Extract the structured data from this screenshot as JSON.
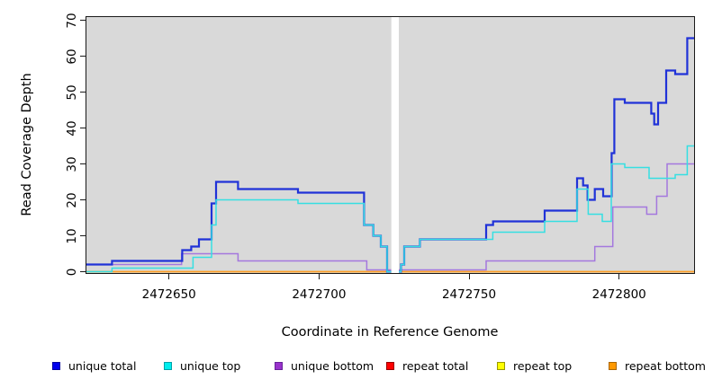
{
  "chart_data": {
    "type": "line",
    "step": true,
    "title": "",
    "xlabel": "Coordinate in Reference Genome",
    "ylabel": "Read Coverage Depth",
    "x_ticks": [
      2472650,
      2472700,
      2472750,
      2472800
    ],
    "y_ticks": [
      0,
      10,
      20,
      30,
      40,
      50,
      60,
      70
    ],
    "xlim": [
      2472622.3,
      2472825.2
    ],
    "ylim": [
      0,
      70
    ],
    "grid": false,
    "panel_bg": "#d9d9d9",
    "gap_x": [
      2472724.1,
      2472726.6
    ],
    "legend_position": "bottom",
    "legend": [
      {
        "label": "unique total",
        "fill": "#0000EE",
        "border": "#0000A0"
      },
      {
        "label": "unique top",
        "fill": "#00EEEE",
        "border": "#00A0A8"
      },
      {
        "label": "unique bottom",
        "fill": "#9932CC",
        "border": "#662299"
      },
      {
        "label": "repeat total",
        "fill": "#FF0000",
        "border": "#990000"
      },
      {
        "label": "repeat top",
        "fill": "#FFFF00",
        "border": "#999900"
      },
      {
        "label": "repeat bottom",
        "fill": "#FF9900",
        "border": "#AA6600"
      }
    ],
    "series": [
      {
        "name": "repeat total",
        "color": "#cc3355",
        "width": 1.4,
        "points_left": [
          [
            2472622.3,
            0
          ]
        ],
        "points_right": [
          [
            2472726.6,
            0
          ]
        ]
      },
      {
        "name": "repeat top",
        "color": "#ffff33",
        "width": 1.4,
        "points_left": [
          [
            2472622.3,
            0
          ]
        ],
        "points_right": [
          [
            2472726.6,
            0
          ]
        ]
      },
      {
        "name": "repeat bottom",
        "color": "#ff9d28",
        "width": 1.6,
        "points_left": [
          [
            2472622.3,
            0
          ]
        ],
        "points_right": [
          [
            2472726.6,
            0
          ]
        ]
      },
      {
        "name": "unique bottom",
        "color": "#a478de",
        "width": 1.5,
        "points_left": [
          [
            2472622.3,
            2
          ],
          [
            2472654.2,
            5
          ],
          [
            2472673,
            3
          ],
          [
            2472715.9,
            0.5
          ]
        ],
        "points_right": [
          [
            2472726.6,
            0.5
          ],
          [
            2472755.7,
            3
          ],
          [
            2472791.9,
            7
          ],
          [
            2472797.9,
            18
          ],
          [
            2472809.2,
            16
          ],
          [
            2472812.5,
            21
          ],
          [
            2472816,
            30
          ]
        ]
      },
      {
        "name": "unique total",
        "color": "#2032d8",
        "width": 2.2,
        "points_left": [
          [
            2472622.3,
            2
          ],
          [
            2472631,
            3
          ],
          [
            2472654.4,
            6
          ],
          [
            2472657.4,
            7
          ],
          [
            2472660,
            9
          ],
          [
            2472664.2,
            19
          ],
          [
            2472665.7,
            25
          ],
          [
            2472673,
            23
          ],
          [
            2472693,
            22
          ],
          [
            2472715,
            13
          ],
          [
            2472718.1,
            10
          ],
          [
            2472720.6,
            7
          ],
          [
            2472722.7,
            0
          ]
        ],
        "points_right": [
          [
            2472726.6,
            0
          ],
          [
            2472727.3,
            2
          ],
          [
            2472728.4,
            7
          ],
          [
            2472733.6,
            9
          ],
          [
            2472755.7,
            13
          ],
          [
            2472758,
            14
          ],
          [
            2472775.2,
            17
          ],
          [
            2472786,
            26
          ],
          [
            2472788,
            24
          ],
          [
            2472789.5,
            20
          ],
          [
            2472791.9,
            23
          ],
          [
            2472794.7,
            21
          ],
          [
            2472797.5,
            33
          ],
          [
            2472798.4,
            48
          ],
          [
            2472801.9,
            47
          ],
          [
            2472810.7,
            44
          ],
          [
            2472811.7,
            41
          ],
          [
            2472813,
            47
          ],
          [
            2472815.7,
            56
          ],
          [
            2472818.7,
            55
          ],
          [
            2472822.7,
            65
          ]
        ]
      },
      {
        "name": "unique top",
        "color": "#35dfe2",
        "width": 1.5,
        "points_left": [
          [
            2472622.3,
            0
          ],
          [
            2472631,
            1
          ],
          [
            2472658,
            4
          ],
          [
            2472664.2,
            13
          ],
          [
            2472665.7,
            20
          ],
          [
            2472693,
            19
          ],
          [
            2472715,
            13
          ],
          [
            2472718.1,
            10
          ],
          [
            2472720.6,
            7
          ],
          [
            2472722.7,
            0
          ]
        ],
        "points_right": [
          [
            2472726.6,
            0
          ],
          [
            2472727.3,
            2
          ],
          [
            2472728.4,
            7
          ],
          [
            2472733.6,
            9
          ],
          [
            2472757.9,
            11
          ],
          [
            2472775.2,
            14
          ],
          [
            2472786,
            23
          ],
          [
            2472789.7,
            16
          ],
          [
            2472794.4,
            14
          ],
          [
            2472797.4,
            30
          ],
          [
            2472801.9,
            29
          ],
          [
            2472810,
            26
          ],
          [
            2472818.7,
            27
          ],
          [
            2472822.7,
            35
          ]
        ]
      }
    ]
  }
}
